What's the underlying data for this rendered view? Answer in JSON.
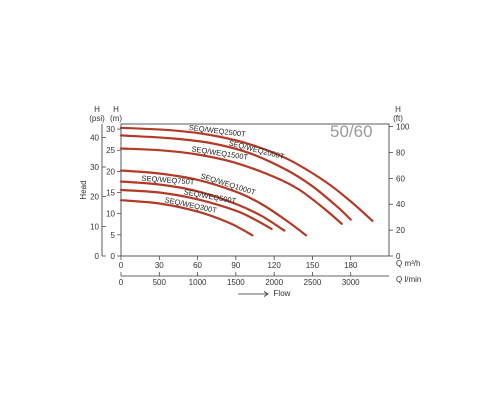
{
  "chart_data": {
    "type": "line",
    "badge": "50/60",
    "title": "",
    "xlabel": "Flow",
    "ylabel": "Head",
    "grid": false,
    "legend": "none",
    "curve_color": "#b33a26",
    "axes": {
      "x_primary": {
        "unit": "Q m³/h",
        "range": [
          0,
          210
        ],
        "ticks": [
          "0",
          "30",
          "60",
          "90",
          "120",
          "150",
          "180"
        ]
      },
      "x_secondary": {
        "unit": "Q l/min",
        "range": [
          0,
          3500
        ],
        "ticks": [
          "0",
          "500",
          "1000",
          "1500",
          "2000",
          "2500",
          "3000"
        ]
      },
      "y_psi": {
        "unit_top": "H",
        "unit_bottom": "(psi)",
        "range": [
          0,
          44.5
        ],
        "ticks": [
          "0",
          "10",
          "20",
          "30",
          "40"
        ]
      },
      "y_m": {
        "unit_top": "H",
        "unit_bottom": "(m)",
        "range": [
          0,
          31.2
        ],
        "ticks": [
          "0",
          "5",
          "10",
          "15",
          "20",
          "25",
          "30"
        ]
      },
      "y_ft": {
        "unit_top": "H",
        "unit_bottom": "(ft)",
        "range": [
          0,
          102
        ],
        "ticks": [
          "0",
          "20",
          "40",
          "60",
          "80",
          "100"
        ]
      }
    },
    "series": [
      {
        "name": "SEQ/WEQ2500T",
        "x": [
          0,
          40,
          70,
          100,
          130,
          160,
          180,
          197
        ],
        "y": [
          30.3,
          29.7,
          28.6,
          26.5,
          23,
          17.6,
          12.9,
          8.3
        ]
      },
      {
        "name": "SEQ/WEQ2000T",
        "x": [
          0,
          40,
          70,
          100,
          130,
          150,
          170,
          180
        ],
        "y": [
          28.5,
          27.8,
          26.7,
          24.4,
          20.3,
          16.5,
          11.5,
          8.6
        ]
      },
      {
        "name": "SEQ/WEQ1500T",
        "x": [
          0,
          30,
          60,
          90,
          120,
          140,
          160,
          173
        ],
        "y": [
          25.4,
          25,
          24,
          22,
          18.7,
          15.6,
          11,
          7.6
        ]
      },
      {
        "name": "SEQ/WEQ1000T",
        "x": [
          0,
          30,
          60,
          90,
          110,
          130,
          145
        ],
        "y": [
          20.2,
          19.5,
          18,
          15.2,
          12.3,
          8.3,
          4.9
        ]
      },
      {
        "name": "SEQ/WEQ750T",
        "x": [
          0,
          30,
          60,
          90,
          110,
          128
        ],
        "y": [
          17.6,
          16.9,
          15.3,
          12.3,
          9.5,
          6
        ]
      },
      {
        "name": "SEQ/WEQ500T",
        "x": [
          0,
          30,
          60,
          90,
          105,
          118
        ],
        "y": [
          15.6,
          15,
          13.4,
          10.7,
          8.6,
          6.4
        ]
      },
      {
        "name": "SEQ/WEQ300T",
        "x": [
          0,
          30,
          60,
          85,
          103
        ],
        "y": [
          13.2,
          12.4,
          10.5,
          7.8,
          4.9
        ]
      }
    ]
  }
}
